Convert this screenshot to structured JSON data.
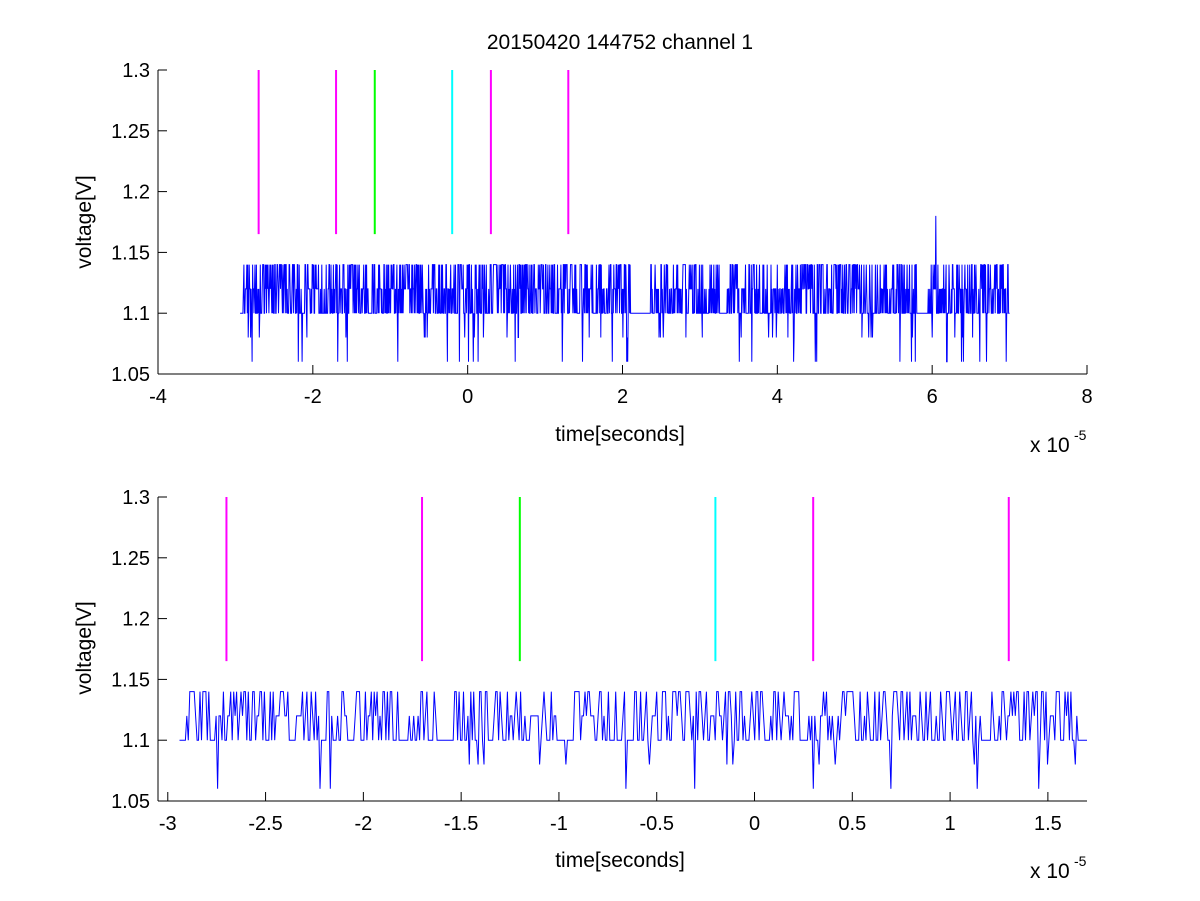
{
  "chart_data": [
    {
      "type": "line",
      "title": "20150420 144752 channel 1",
      "xlabel": "time[seconds]",
      "ylabel": "voltage[V]",
      "x_multiplier": "x 10",
      "x_multiplier_exp": "-5",
      "xlim": [
        -4,
        8
      ],
      "ylim": [
        1.05,
        1.3
      ],
      "xticks": [
        "-4",
        "-2",
        "0",
        "2",
        "4",
        "6",
        "8"
      ],
      "yticks": [
        "1.05",
        "1.1",
        "1.15",
        "1.2",
        "1.25",
        "1.3"
      ],
      "grid": false,
      "markers": [
        {
          "x": -2.7,
          "color": "#ff00ff"
        },
        {
          "x": -1.7,
          "color": "#ff00ff"
        },
        {
          "x": -1.2,
          "color": "#00ff00"
        },
        {
          "x": -0.2,
          "color": "#00ffff"
        },
        {
          "x": 0.3,
          "color": "#ff00ff"
        },
        {
          "x": 1.3,
          "color": "#ff00ff"
        }
      ],
      "marker_range": [
        1.165,
        1.3
      ],
      "series": [
        {
          "color": "#0000ff",
          "x_range": [
            -2.94,
            7.0
          ],
          "baseline": 1.1,
          "levels": [
            1.06,
            1.08,
            1.1,
            1.12,
            1.14
          ],
          "spike": {
            "x": 6.04,
            "y": 1.18
          }
        }
      ]
    },
    {
      "type": "line",
      "title": "",
      "xlabel": "time[seconds]",
      "ylabel": "voltage[V]",
      "x_multiplier": "x 10",
      "x_multiplier_exp": "-5",
      "xlim": [
        -3.05,
        1.7
      ],
      "ylim": [
        1.05,
        1.3
      ],
      "xticks": [
        "-3",
        "-2.5",
        "-2",
        "-1.5",
        "-1",
        "-0.5",
        "0",
        "0.5",
        "1",
        "1.5"
      ],
      "yticks": [
        "1.05",
        "1.1",
        "1.15",
        "1.2",
        "1.25",
        "1.3"
      ],
      "grid": false,
      "markers": [
        {
          "x": -2.7,
          "color": "#ff00ff"
        },
        {
          "x": -1.7,
          "color": "#ff00ff"
        },
        {
          "x": -1.2,
          "color": "#00ff00"
        },
        {
          "x": -0.2,
          "color": "#00ffff"
        },
        {
          "x": 0.3,
          "color": "#ff00ff"
        },
        {
          "x": 1.3,
          "color": "#ff00ff"
        }
      ],
      "marker_range": [
        1.165,
        1.3
      ],
      "series": [
        {
          "color": "#0000ff",
          "x_range": [
            -2.94,
            1.7
          ],
          "baseline": 1.1,
          "levels": [
            1.06,
            1.08,
            1.1,
            1.12,
            1.14
          ]
        }
      ]
    }
  ]
}
